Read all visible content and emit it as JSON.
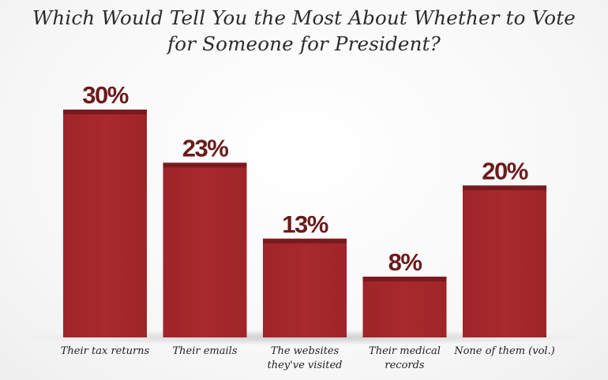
{
  "chart_data": {
    "type": "bar",
    "title_lines": [
      "Which Would Tell You the Most About Whether to Vote",
      "for Someone for President?"
    ],
    "categories": [
      [
        "Their tax returns"
      ],
      [
        "Their emails"
      ],
      [
        "The websites",
        "they've visited"
      ],
      [
        "Their medical",
        "records"
      ],
      [
        "None of them (vol.)"
      ]
    ],
    "values": [
      30,
      23,
      13,
      8,
      20
    ],
    "value_labels": [
      "30%",
      "23%",
      "13%",
      "8%",
      "20%"
    ],
    "ylim": [
      0,
      30
    ],
    "grid": false,
    "legend": "none",
    "bar_color": "#a3282d",
    "bar_cap_color": "#7a1a1e",
    "label_color": "#6b1b1b"
  }
}
